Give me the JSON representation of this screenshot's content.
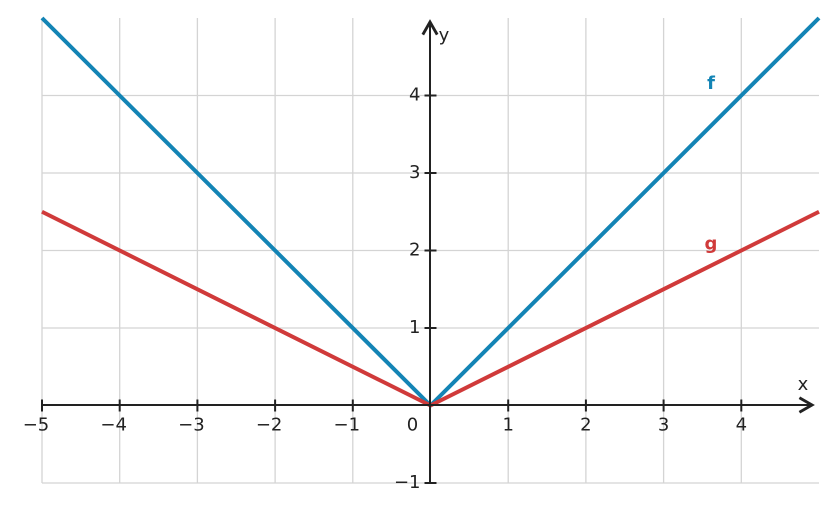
{
  "chart_data": {
    "type": "line",
    "x_label": "x",
    "y_label": "y",
    "x": [
      -5,
      0,
      5
    ],
    "series": [
      {
        "name": "f",
        "color": "#1384b5",
        "values": [
          5,
          0,
          5
        ]
      },
      {
        "name": "g",
        "color": "#d03a3a",
        "values": [
          2.5,
          0,
          2.5
        ]
      }
    ],
    "xlim": [
      -5,
      5
    ],
    "ylim": [
      -1,
      5
    ],
    "xticks": [
      {
        "value": -5,
        "label": "−5"
      },
      {
        "value": -4,
        "label": "−4"
      },
      {
        "value": -3,
        "label": "−3"
      },
      {
        "value": -2,
        "label": "−2"
      },
      {
        "value": -1,
        "label": "−1"
      },
      0,
      1,
      2,
      3,
      4
    ],
    "yticks": [
      {
        "value": -1,
        "label": "−1"
      },
      1,
      2,
      3,
      4
    ],
    "grid": true
  }
}
